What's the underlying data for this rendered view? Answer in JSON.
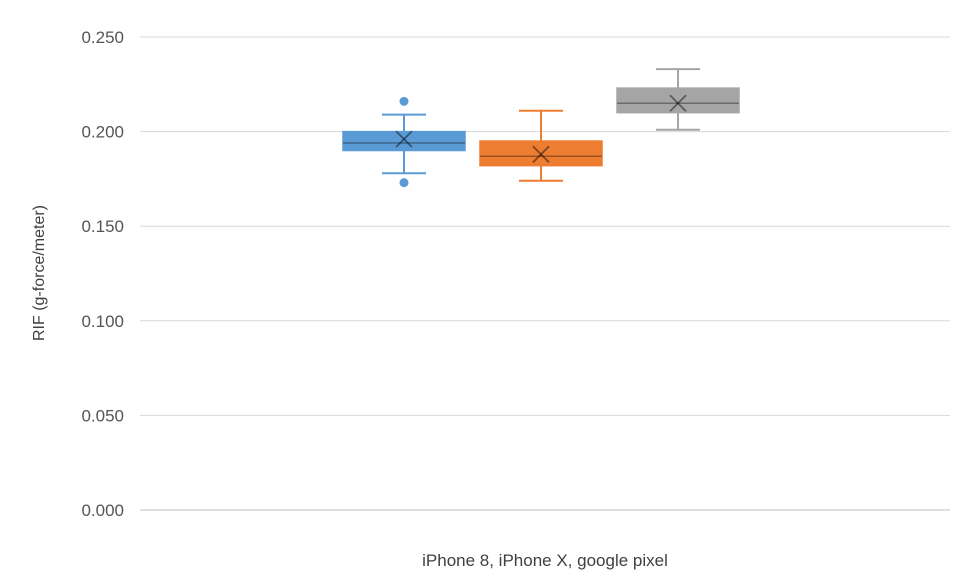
{
  "chart_data": {
    "type": "box",
    "title": "",
    "xlabel": "iPhone 8, iPhone X, google pixel",
    "ylabel": "RIF (g-force/meter)",
    "ylim": [
      0,
      0.25
    ],
    "yticks": [
      "0.000",
      "0.050",
      "0.100",
      "0.150",
      "0.200",
      "0.250"
    ],
    "grid": true,
    "legend": "none",
    "series": [
      {
        "color": "#5b9bd5",
        "whisker_low": 0.178,
        "q1": 0.19,
        "median": 0.194,
        "q3": 0.2,
        "whisker_high": 0.209,
        "mean": 0.196,
        "outliers": [
          0.216,
          0.173
        ]
      },
      {
        "color": "#ed7d31",
        "whisker_low": 0.174,
        "q1": 0.182,
        "median": 0.187,
        "q3": 0.195,
        "whisker_high": 0.211,
        "mean": 0.188,
        "outliers": []
      },
      {
        "color": "#a5a5a5",
        "whisker_low": 0.201,
        "q1": 0.21,
        "median": 0.215,
        "q3": 0.223,
        "whisker_high": 0.233,
        "mean": 0.215,
        "outliers": []
      }
    ]
  }
}
